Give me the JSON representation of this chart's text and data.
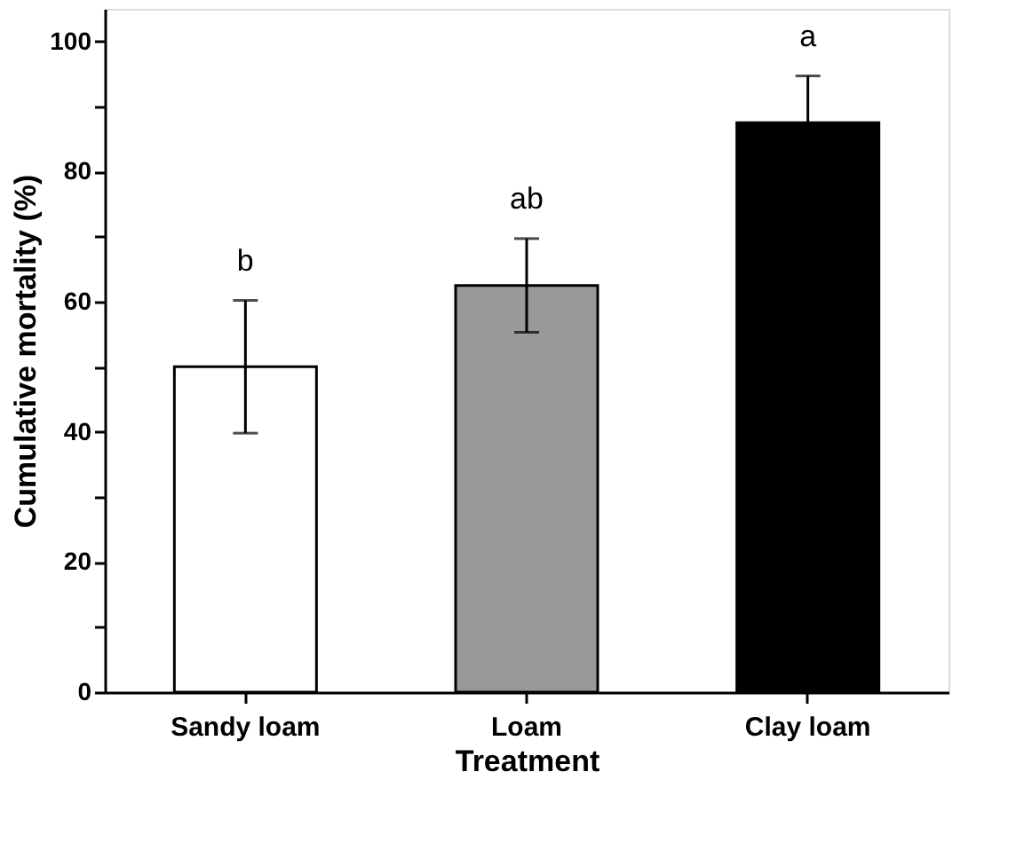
{
  "chart_data": {
    "type": "bar",
    "xlabel": "Treatment",
    "ylabel": "Cumulative mortality (%)",
    "categories": [
      "Sandy loam",
      "Loam",
      "Clay loam"
    ],
    "values": [
      50,
      62.5,
      87.5
    ],
    "colors": [
      "#ffffff",
      "#999999",
      "#000000"
    ],
    "errors": [
      10.2,
      7.2,
      7.2
    ],
    "ylim": [
      0,
      105
    ],
    "yticks": [
      0,
      {
        "value": 10,
        "label": null
      },
      20,
      {
        "value": 30,
        "label": null
      },
      40,
      {
        "value": 50,
        "label": null
      },
      60,
      {
        "value": 70,
        "label": null
      },
      80,
      {
        "value": 90,
        "label": null
      },
      100
    ],
    "annotations": [
      "b",
      "ab",
      "a"
    ],
    "grid": false
  }
}
